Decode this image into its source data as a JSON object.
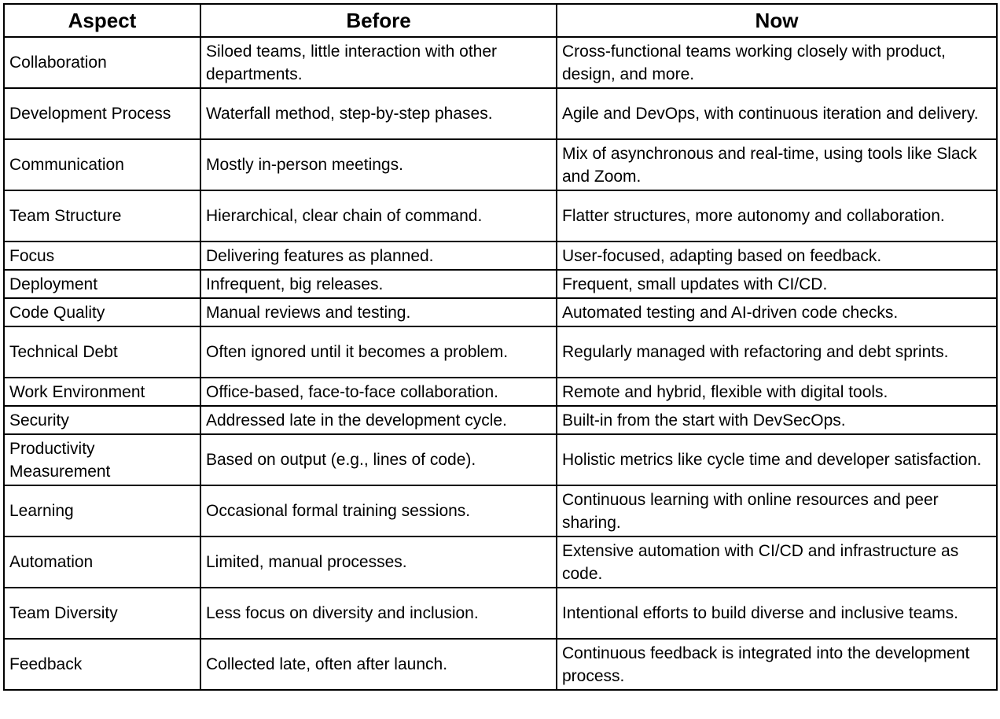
{
  "headers": [
    "Aspect",
    "Before",
    "Now"
  ],
  "rows": [
    {
      "aspect": "Collaboration",
      "before": "Siloed teams, little interaction with other departments.",
      "now": "Cross-functional teams working closely with product, design, and more."
    },
    {
      "aspect": "Development Process",
      "before": "Waterfall method, step-by-step phases.",
      "now": "Agile and DevOps, with continuous iteration and delivery."
    },
    {
      "aspect": "Communication",
      "before": "Mostly in-person meetings.",
      "now": "Mix of asynchronous and real-time, using tools like Slack and Zoom."
    },
    {
      "aspect": "Team Structure",
      "before": "Hierarchical, clear chain of command.",
      "now": "Flatter structures, more autonomy and collaboration."
    },
    {
      "aspect": "Focus",
      "before": "Delivering features as planned.",
      "now": "User-focused, adapting based on feedback."
    },
    {
      "aspect": "Deployment",
      "before": "Infrequent, big releases.",
      "now": "Frequent, small updates with CI/CD."
    },
    {
      "aspect": "Code Quality",
      "before": "Manual reviews and testing.",
      "now": "Automated testing and AI-driven code checks."
    },
    {
      "aspect": "Technical Debt",
      "before": "Often ignored until it becomes a problem.",
      "now": "Regularly managed with refactoring and debt sprints."
    },
    {
      "aspect": "Work Environment",
      "before": "Office-based, face-to-face collaboration.",
      "now": "Remote and hybrid, flexible with digital tools."
    },
    {
      "aspect": "Security",
      "before": "Addressed late in the development cycle.",
      "now": "Built-in from the start with DevSecOps."
    },
    {
      "aspect": "Productivity Measurement",
      "before": "Based on output (e.g., lines of code).",
      "now": "Holistic metrics like cycle time and developer satisfaction."
    },
    {
      "aspect": "Learning",
      "before": "Occasional formal training sessions.",
      "now": "Continuous learning with online resources and peer sharing."
    },
    {
      "aspect": "Automation",
      "before": "Limited, manual processes.",
      "now": "Extensive automation with CI/CD and infrastructure as code."
    },
    {
      "aspect": "Team Diversity",
      "before": "Less focus on diversity and inclusion.",
      "now": "Intentional efforts to build diverse and inclusive teams."
    },
    {
      "aspect": "Feedback",
      "before": "Collected late, often after launch.",
      "now": "Continuous feedback is integrated into the development process."
    }
  ]
}
